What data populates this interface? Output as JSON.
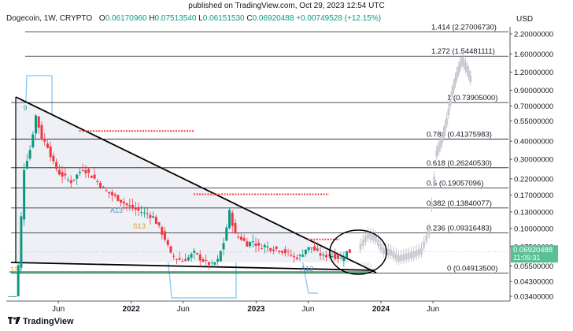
{
  "published": "published on TradingView.com, Oct 29, 2023 12:54 UTC",
  "symbol": "Dogecoin, 1W, CRYPTO",
  "ohlc": {
    "o_label": "O",
    "o": "0.06170960",
    "h_label": "H",
    "h": "0.07513540",
    "l_label": "L",
    "l": "0.06151530",
    "c_label": "C",
    "c": "0.06920488",
    "change": "+0.00749528 (+12.15%)"
  },
  "brand": "TradingView",
  "colors": {
    "up": "#089981",
    "down": "#f23645",
    "level": "#131722",
    "dashed": "#ef4444",
    "blue_line": "#7cc4ee",
    "price_tag": "#5bbf94",
    "support": "#22a55a"
  },
  "chart_data": {
    "type": "candlestick",
    "y_scale": "log",
    "y_unit": "USD",
    "y_ticks": [
      "2.20000000",
      "1.60000000",
      "1.20000000",
      "0.90000000",
      "0.70000000",
      "0.55000000",
      "0.40000000",
      "0.30000000",
      "0.22000000",
      "0.17000000",
      "0.13000000",
      "0.10000000",
      "0.07500000",
      "0.05500000",
      "0.04300000",
      "0.03400000"
    ],
    "x_ticks": [
      "Jun",
      "2022",
      "Jun",
      "2023",
      "Jun",
      "2024",
      "Jun"
    ],
    "fib_levels": [
      {
        "label": "1.414 (2.27006730)",
        "value": 2.2700673
      },
      {
        "label": "1.272 (1.54481111)",
        "value": 1.54481111
      },
      {
        "label": "1 (0.73905000)",
        "value": 0.73905
      },
      {
        "label": "0.786 (0.41375983)",
        "value": 0.41375983
      },
      {
        "label": "0.618 (0.26240530)",
        "value": 0.2624053
      },
      {
        "label": "0.5 (0.19057096)",
        "value": 0.19057096
      },
      {
        "label": "0.382 (0.13840077)",
        "value": 0.13840077
      },
      {
        "label": "0.236 (0.09316483)",
        "value": 0.09316483
      },
      {
        "label": "0 (0.04913500)",
        "value": 0.049135
      }
    ],
    "last_price": "0.06920488",
    "countdown": "11:05:31",
    "annotations": [
      "A13",
      "S13",
      "A13",
      "13",
      "9"
    ],
    "resistance_dashes": [
      {
        "value": 0.47,
        "from": "2021-08",
        "to": "2022-07"
      },
      {
        "value": 0.172,
        "from": "2022-07",
        "to": "2023-08"
      },
      {
        "value": 0.084,
        "from": "2023-06",
        "to": "2023-09"
      }
    ]
  }
}
